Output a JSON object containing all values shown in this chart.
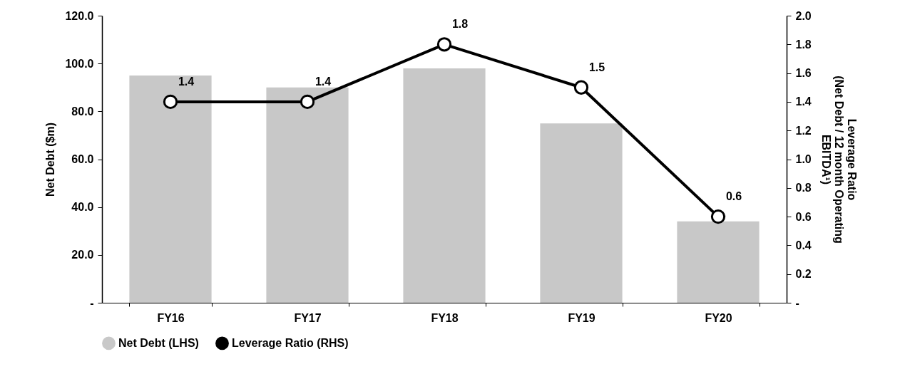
{
  "chart_data": {
    "type": "bar",
    "categories": [
      "FY16",
      "FY17",
      "FY18",
      "FY19",
      "FY20"
    ],
    "ylabel": "Net Debt ($m)",
    "y2label": "Leverage Ratio\n(Net Debt / 12 month Operating\nEBITDA¹)",
    "ylim": [
      0,
      120
    ],
    "yticks": [
      {
        "value": 0,
        "label": "-"
      },
      {
        "value": 20,
        "label": "20.0"
      },
      {
        "value": 40,
        "label": "40.0"
      },
      {
        "value": 60,
        "label": "60.0"
      },
      {
        "value": 80,
        "label": "80.0"
      },
      {
        "value": 100,
        "label": "100.0"
      },
      {
        "value": 120,
        "label": "120.0"
      }
    ],
    "y2lim": [
      0,
      2
    ],
    "y2ticks": [
      {
        "value": 0,
        "label": "-"
      },
      0.2,
      0.4,
      0.6,
      0.8,
      {
        "value": 1,
        "label": "1.0"
      },
      1.2,
      1.4,
      1.6,
      1.8,
      {
        "value": 2,
        "label": "2.0"
      }
    ],
    "series": [
      {
        "name": "Net Debt (LHS)",
        "color": "#c8c8c8",
        "values": [
          95,
          90,
          98,
          75,
          34
        ]
      },
      {
        "name": "Leverage Ratio (RHS)",
        "type": "line",
        "axis": "y2",
        "color": "#000000",
        "marker": "circle",
        "values": [
          1.4,
          1.4,
          1.8,
          1.5,
          0.6
        ],
        "value_labels": [
          "1.4",
          "1.4",
          "1.8",
          "1.5",
          "0.6"
        ]
      }
    ],
    "legend": "bottom",
    "grid": false
  }
}
